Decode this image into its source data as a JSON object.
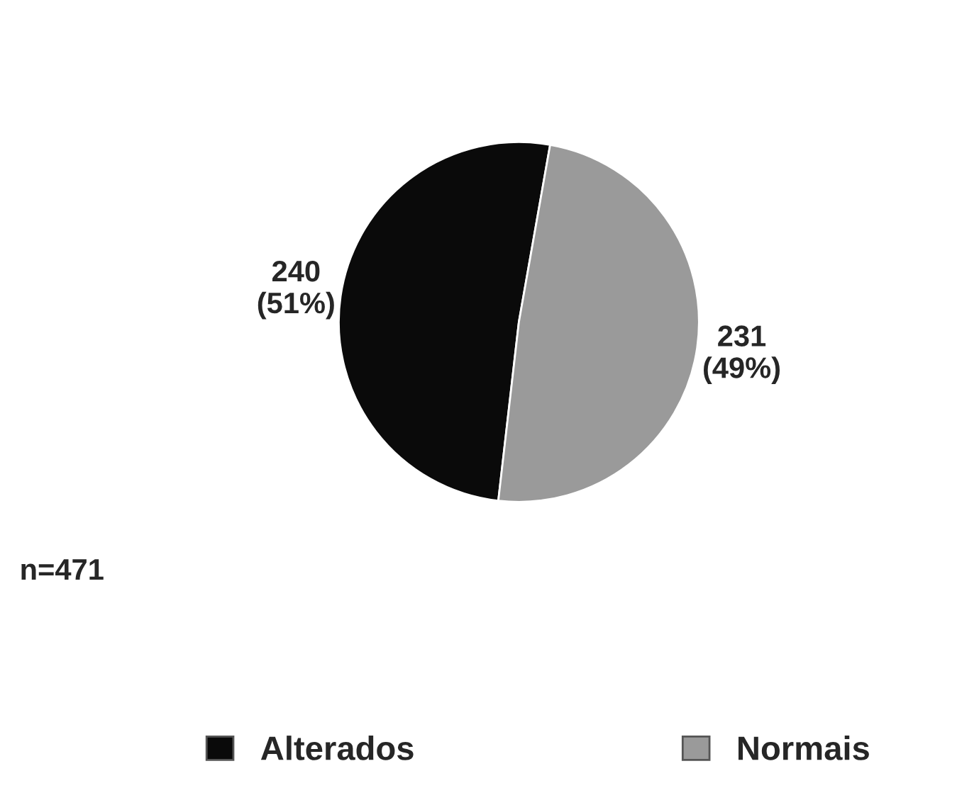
{
  "chart_data": {
    "type": "pie",
    "categories": [
      "Alterados",
      "Normais"
    ],
    "values": [
      240,
      231
    ],
    "value_labels": [
      "240\n(51%)",
      "231\n(49%)"
    ],
    "colors": [
      "#0a0a0a",
      "#9a9a9a"
    ],
    "annotations": [
      "n=471"
    ],
    "legend": "bottom"
  }
}
